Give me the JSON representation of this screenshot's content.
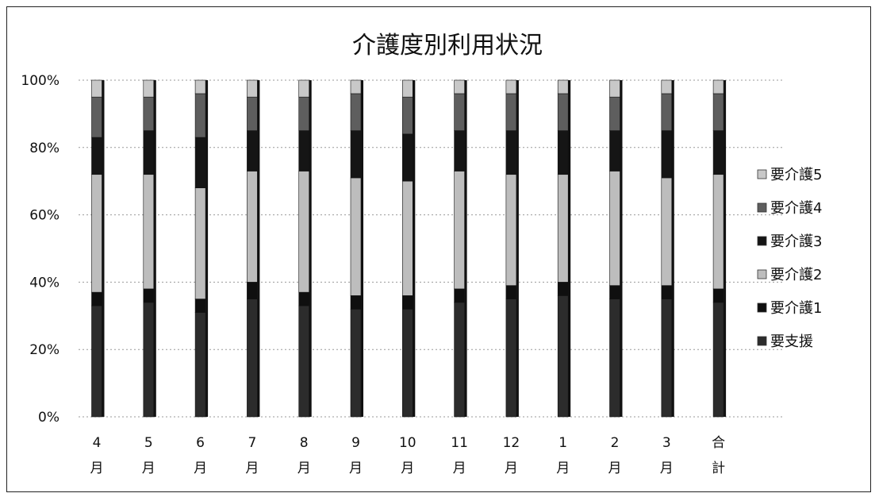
{
  "chart_data": {
    "type": "bar",
    "stacked": true,
    "percent": true,
    "title": "介護度別利用状況",
    "xlabel": "",
    "ylabel": "",
    "ylim": [
      0,
      100
    ],
    "yticks": [
      "0%",
      "20%",
      "40%",
      "60%",
      "80%",
      "100%"
    ],
    "grid": true,
    "legend_position": "right",
    "categories": [
      [
        "4",
        "月"
      ],
      [
        "5",
        "月"
      ],
      [
        "6",
        "月"
      ],
      [
        "7",
        "月"
      ],
      [
        "8",
        "月"
      ],
      [
        "9",
        "月"
      ],
      [
        "10",
        "月"
      ],
      [
        "11",
        "月"
      ],
      [
        "12",
        "月"
      ],
      [
        "1",
        "月"
      ],
      [
        "2",
        "月"
      ],
      [
        "3",
        "月"
      ],
      [
        "合",
        "計"
      ]
    ],
    "series": [
      {
        "name": "要支援",
        "color": "#2c2c2c",
        "values": [
          33,
          34,
          31,
          35,
          33,
          32,
          32,
          34,
          35,
          36,
          35,
          35,
          34
        ]
      },
      {
        "name": "要介護1",
        "color": "#0f0f0f",
        "values": [
          4,
          4,
          4,
          5,
          4,
          4,
          4,
          4,
          4,
          4,
          4,
          4,
          4
        ]
      },
      {
        "name": "要介護2",
        "color": "#bdbdbd",
        "values": [
          35,
          34,
          33,
          33,
          36,
          35,
          34,
          35,
          33,
          32,
          34,
          32,
          34
        ]
      },
      {
        "name": "要介護3",
        "color": "#151515",
        "values": [
          11,
          13,
          15,
          12,
          12,
          14,
          14,
          12,
          13,
          13,
          12,
          14,
          13
        ]
      },
      {
        "name": "要介護4",
        "color": "#5e5e5e",
        "values": [
          12,
          10,
          13,
          10,
          10,
          11,
          11,
          11,
          11,
          11,
          10,
          11,
          11
        ]
      },
      {
        "name": "要介護5",
        "color": "#c8c8c8",
        "values": [
          5,
          5,
          4,
          5,
          5,
          4,
          5,
          4,
          4,
          4,
          5,
          4,
          4
        ]
      }
    ]
  }
}
